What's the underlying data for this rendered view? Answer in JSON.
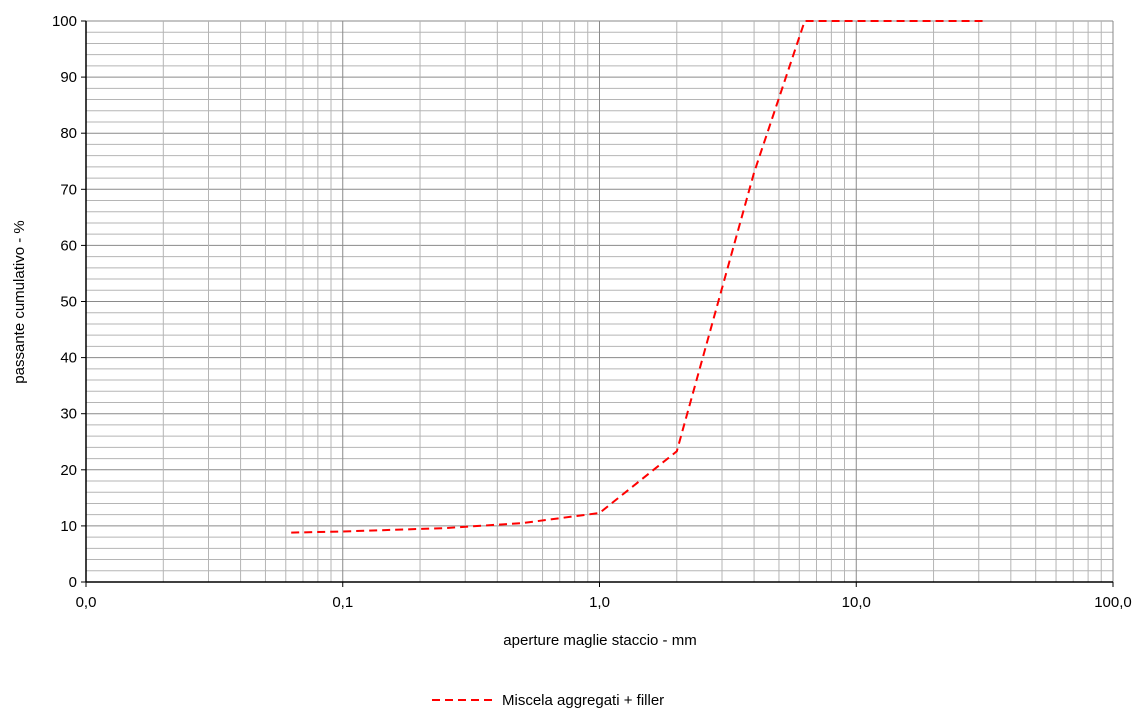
{
  "chart_data": {
    "type": "line",
    "title": "",
    "xlabel": "aperture maglie staccio - mm",
    "ylabel": "passante cumulativo - %",
    "x_scale": "log",
    "xlim": [
      0.01,
      100
    ],
    "ylim": [
      0,
      100
    ],
    "x_ticks": [
      {
        "value": 0.01,
        "label": "0,0"
      },
      {
        "value": 0.1,
        "label": "0,1"
      },
      {
        "value": 1,
        "label": "1,0"
      },
      {
        "value": 10,
        "label": "10,0"
      },
      {
        "value": 100,
        "label": "100,0"
      }
    ],
    "y_ticks": [
      0,
      10,
      20,
      30,
      40,
      50,
      60,
      70,
      80,
      90,
      100
    ],
    "grid": true,
    "legend_position": "bottom-center",
    "series": [
      {
        "name": "Miscela aggregati + filler",
        "color": "#ff0000",
        "line_style": "dashed",
        "x": [
          0.063,
          0.1,
          0.25,
          0.5,
          1,
          2,
          4,
          6.3,
          10,
          31.5
        ],
        "y": [
          8.8,
          9,
          9.6,
          10.5,
          12.3,
          23.3,
          73,
          100,
          100,
          100
        ]
      }
    ]
  }
}
